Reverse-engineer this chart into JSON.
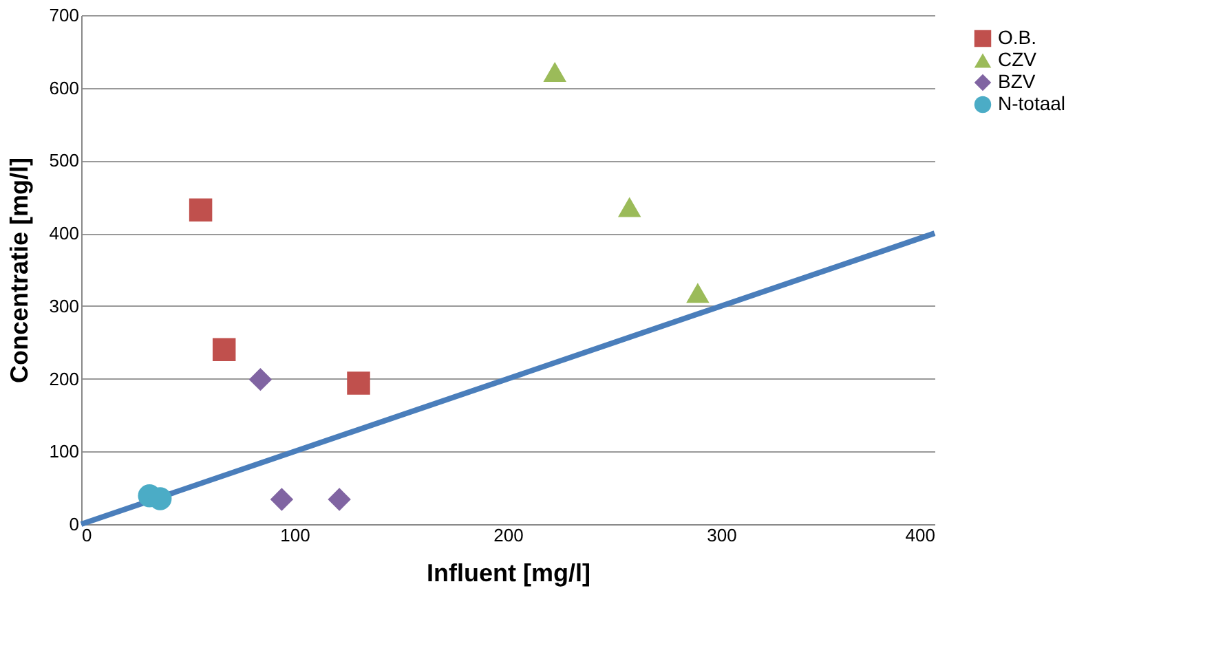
{
  "chart_data": {
    "type": "scatter",
    "xlabel": "Influent [mg/l]",
    "ylabel": "Concentratie [mg/l]",
    "xlim": [
      0,
      400
    ],
    "xticks": [
      0,
      100,
      200,
      300,
      400
    ],
    "ylim": [
      0,
      700
    ],
    "yticks": [
      0,
      100,
      200,
      300,
      400,
      500,
      600,
      700
    ],
    "grid": "y",
    "legend": "right",
    "series": [
      {
        "name": "O.B.",
        "color": "#c0504d",
        "marker": "square",
        "x": [
          56,
          67,
          130
        ],
        "values": [
          432,
          240,
          194
        ]
      },
      {
        "name": "CZV",
        "color": "#9bbb59",
        "marker": "triangle",
        "x": [
          222,
          257,
          289
        ],
        "values": [
          622,
          436,
          318
        ]
      },
      {
        "name": "BZV",
        "color": "#8064a2",
        "marker": "diamond",
        "x": [
          84,
          94,
          121
        ],
        "values": [
          199,
          34,
          34
        ]
      },
      {
        "name": "N-totaal",
        "color": "#4bacc6",
        "marker": "circle",
        "x": [
          32,
          37
        ],
        "values": [
          39,
          35
        ]
      },
      {
        "type": "line",
        "color": "#4a7ebb",
        "x": [
          0,
          400
        ],
        "values": [
          0,
          400
        ]
      }
    ]
  }
}
